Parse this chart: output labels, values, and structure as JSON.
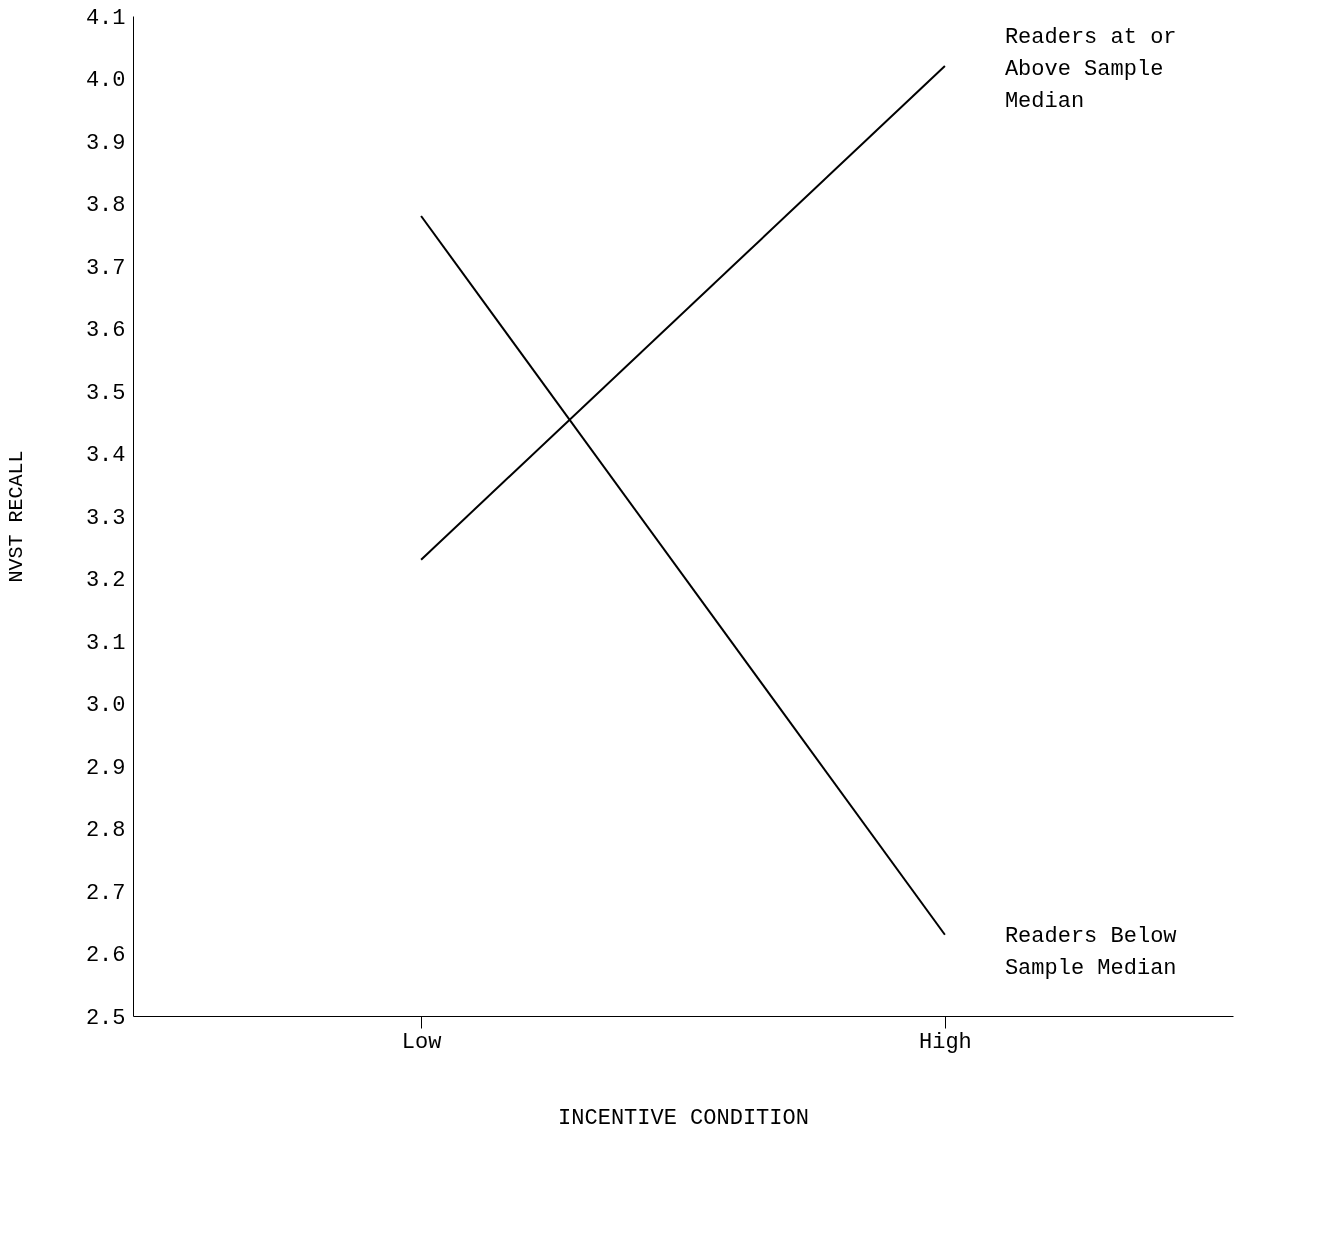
{
  "chart_data": {
    "type": "line",
    "xlabel": "INCENTIVE CONDITION",
    "ylabel": "NVST RECALL",
    "categories": [
      "Low",
      "High"
    ],
    "series": [
      {
        "name": "Readers at or Above Sample Median",
        "color": "#000000",
        "values": [
          3.23,
          4.02
        ]
      },
      {
        "name": "Readers Below Sample Median",
        "color": "#000000",
        "values": [
          3.78,
          2.63
        ]
      }
    ],
    "ylim": [
      2.5,
      4.1
    ],
    "yticks": [
      2.5,
      2.6,
      2.7,
      2.8,
      2.9,
      {
        "value": 3,
        "label": "3.0"
      },
      3.1,
      3.2,
      3.3,
      3.4,
      3.5,
      3.6,
      3.7,
      3.8,
      3.9,
      {
        "value": 4,
        "label": "4.0"
      },
      4.1
    ],
    "grid": false,
    "legend": false,
    "marker": "none",
    "line_style": "solid"
  }
}
